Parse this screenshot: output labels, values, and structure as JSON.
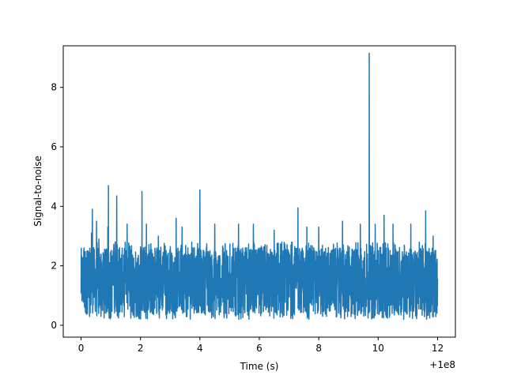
{
  "chart_data": {
    "type": "line",
    "title": "",
    "xlabel": "Time (s)",
    "ylabel": "Signal-to-noise",
    "x_offset_label": "+1e8",
    "xlim": [
      -0.6,
      12.6
    ],
    "ylim": [
      -0.4,
      9.4
    ],
    "x_ticks": [
      0,
      2,
      4,
      6,
      8,
      10,
      12
    ],
    "x_tick_labels": [
      "0",
      "2",
      "4",
      "6",
      "8",
      "10",
      "12"
    ],
    "y_ticks": [
      0,
      2,
      4,
      6,
      8
    ],
    "y_tick_labels": [
      "0",
      "2",
      "4",
      "6",
      "8"
    ],
    "grid": false,
    "line_color": "#1f77b4",
    "series": [
      {
        "x_start": 0,
        "x_end": 12,
        "baseline_min": 0.2,
        "baseline_max": 2.8,
        "peaks": [
          {
            "x": 0.1,
            "y": 2.6
          },
          {
            "x": 0.35,
            "y": 3.1
          },
          {
            "x": 0.6,
            "y": 2.9
          },
          {
            "x": 0.9,
            "y": 3.3
          },
          {
            "x": 1.15,
            "y": 2.8
          },
          {
            "x": 0.38,
            "y": 3.9
          },
          {
            "x": 0.52,
            "y": 3.5
          },
          {
            "x": 0.92,
            "y": 4.7
          },
          {
            "x": 1.2,
            "y": 4.35
          },
          {
            "x": 1.55,
            "y": 3.4
          },
          {
            "x": 2.05,
            "y": 4.5
          },
          {
            "x": 2.2,
            "y": 3.4
          },
          {
            "x": 2.6,
            "y": 3.0
          },
          {
            "x": 3.2,
            "y": 3.6
          },
          {
            "x": 3.4,
            "y": 3.3
          },
          {
            "x": 4.0,
            "y": 4.55
          },
          {
            "x": 4.5,
            "y": 3.4
          },
          {
            "x": 5.3,
            "y": 3.4
          },
          {
            "x": 5.8,
            "y": 3.4
          },
          {
            "x": 6.5,
            "y": 3.2
          },
          {
            "x": 7.3,
            "y": 3.95
          },
          {
            "x": 7.6,
            "y": 3.3
          },
          {
            "x": 8.0,
            "y": 3.3
          },
          {
            "x": 8.8,
            "y": 3.5
          },
          {
            "x": 9.4,
            "y": 3.4
          },
          {
            "x": 9.7,
            "y": 9.15
          },
          {
            "x": 9.9,
            "y": 3.4
          },
          {
            "x": 10.2,
            "y": 3.7
          },
          {
            "x": 10.5,
            "y": 3.4
          },
          {
            "x": 11.1,
            "y": 3.4
          },
          {
            "x": 11.6,
            "y": 3.85
          },
          {
            "x": 11.85,
            "y": 3.0
          }
        ]
      }
    ]
  }
}
